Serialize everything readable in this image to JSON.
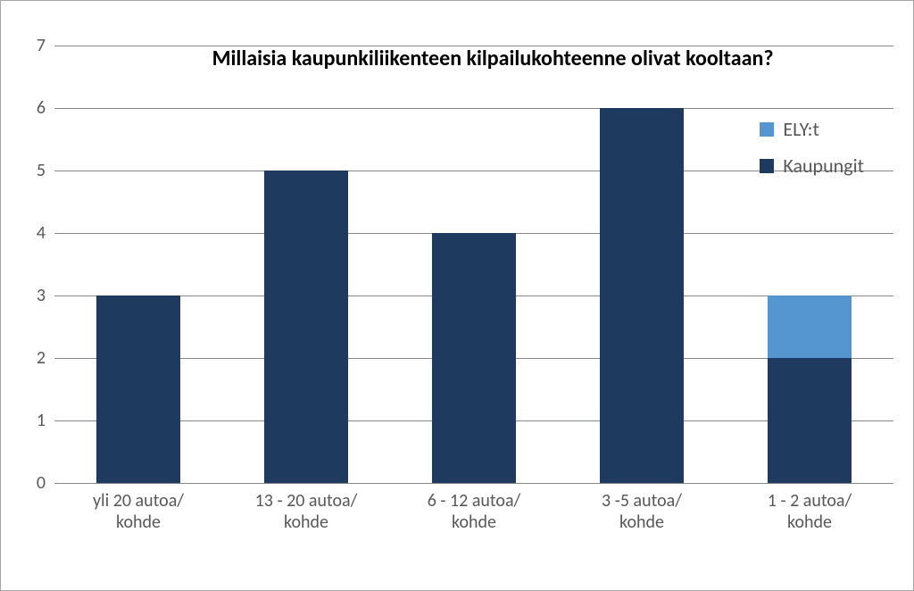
{
  "chart": {
    "type": "stacked-bar",
    "title": "Millaisia kaupunkiliikenteen kilpailukohteenne olivat kooltaan?",
    "title_fontsize": 24,
    "title_fontweight": "bold",
    "background_color": "#ffffff",
    "grid_color": "#888888",
    "axis_label_color": "#585858",
    "axis_fontsize": 20,
    "y": {
      "min": 0,
      "max": 7,
      "ticks": [
        0,
        1,
        2,
        3,
        4,
        5,
        6,
        7
      ]
    },
    "categories": [
      "yli 20 autoa/\nkohde",
      "13 - 20 autoa/\nkohde",
      "6 - 12 autoa/\nkohde",
      "3 -5 autoa/\nkohde",
      "1 - 2 autoa/\nkohde"
    ],
    "series": [
      {
        "name": "Kaupungit",
        "color": "#1f3a5f",
        "values": [
          3,
          5,
          4,
          6,
          2
        ]
      },
      {
        "name": "ELY:t",
        "color": "#5596d0",
        "values": [
          0,
          0,
          0,
          0,
          1
        ]
      }
    ],
    "legend_order": [
      "ELY:t",
      "Kaupungit"
    ],
    "bar_width_ratio": 0.5
  }
}
